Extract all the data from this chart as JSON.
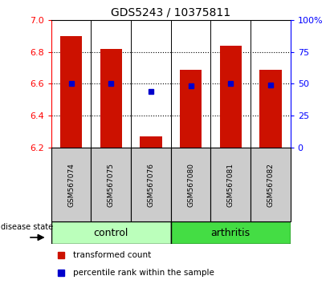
{
  "title": "GDS5243 / 10375811",
  "samples": [
    "GSM567074",
    "GSM567075",
    "GSM567076",
    "GSM567080",
    "GSM567081",
    "GSM567082"
  ],
  "bar_values": [
    6.9,
    6.82,
    6.27,
    6.69,
    6.84,
    6.69
  ],
  "bar_base": 6.2,
  "percentile_values": [
    6.6,
    6.6,
    6.55,
    6.585,
    6.6,
    6.59
  ],
  "ylim": [
    6.2,
    7.0
  ],
  "y_left_ticks": [
    6.2,
    6.4,
    6.6,
    6.8,
    7.0
  ],
  "y_right_ticks": [
    0,
    25,
    50,
    75,
    100
  ],
  "bar_color": "#cc1100",
  "percentile_color": "#0000cc",
  "control_color": "#bbffbb",
  "arthritis_color": "#44dd44",
  "sample_box_color": "#cccccc",
  "disease_label": "disease state",
  "group_control": "control",
  "group_arthritis": "arthritis",
  "legend_bar_label": "transformed count",
  "legend_pct_label": "percentile rank within the sample",
  "bar_width": 0.55,
  "figsize": [
    4.11,
    3.54
  ],
  "dpi": 100
}
